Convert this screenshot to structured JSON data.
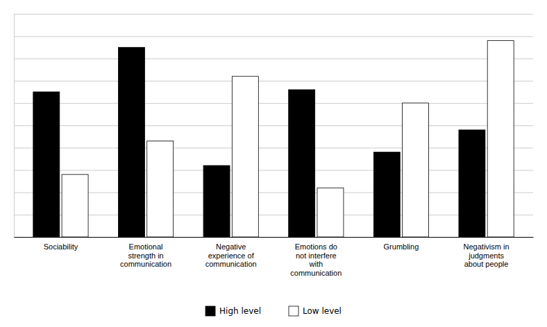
{
  "chart_data": {
    "type": "bar",
    "categories": [
      "Sociability",
      "Emotional\nstrength in\ncommunication",
      "Negative\nexperience of\ncommunication",
      "Emotions do\nnot interfere\nwith\ncommunication",
      "Grumbling",
      "Negativism in\njudgments\nabout people"
    ],
    "series": [
      {
        "name": "High level",
        "color": "#000000",
        "values": [
          6.5,
          8.5,
          3.2,
          6.6,
          3.8,
          4.8
        ]
      },
      {
        "name": "Low level",
        "color": "#ffffff",
        "values": [
          2.8,
          4.3,
          7.2,
          2.2,
          6.0,
          8.8
        ]
      }
    ],
    "ylim": [
      0,
      10
    ],
    "yticks": [
      0,
      1,
      2,
      3,
      4,
      5,
      6,
      7,
      8,
      9,
      10
    ],
    "grid": true,
    "legend": "bottom",
    "tick_labels": "x"
  }
}
